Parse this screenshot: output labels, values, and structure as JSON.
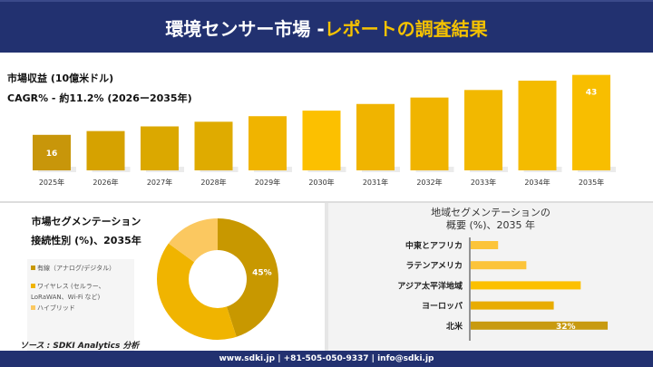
{
  "header": {
    "title_main": "環境センサー市場 -",
    "title_accent": "レポートの調査結果"
  },
  "revenue": {
    "label": "市場収益 (10億米ドル)",
    "cagr": "CAGR% - 約11.2% (2026ー2035年)"
  },
  "connectivity": {
    "title1": "市場セグメンテーション",
    "title2": "接続性別 (%)、2035年",
    "source": "ソース : SDKI Analytics 分析"
  },
  "region": {
    "title1": "地域セグメンテーションの",
    "title2": "概要 (%)、2035 年"
  },
  "footer": {
    "contact": "www.sdki.jp | +81-505-050-9337 | info@sdki.jp"
  },
  "chart_data": [
    {
      "type": "bar",
      "title": "市場収益 (10億米ドル)",
      "categories": [
        "2025年",
        "2026年",
        "2027年",
        "2028年",
        "2029年",
        "2030年",
        "2031年",
        "2032年",
        "2033年",
        "2034年",
        "2035年"
      ],
      "values": [
        16,
        17.7,
        19.8,
        21.9,
        24.4,
        26.9,
        29.9,
        32.8,
        36.2,
        40.4,
        43
      ],
      "data_labels": {
        "0": "16",
        "10": "43"
      },
      "colors": [
        "#c8960a",
        "#d6a200",
        "#dba800",
        "#dfab00",
        "#f0b400",
        "#fcc000",
        "#f0b400",
        "#f0b400",
        "#f2b800",
        "#f4bb00",
        "#f8be00"
      ]
    },
    {
      "type": "pie",
      "title": "接続性別 (%)、2035年",
      "labels": [
        "有線（アナログ/デジタル）",
        "ワイヤレス (セルラー、LoRaWAN、Wi-Fi など)",
        "ハイブリッド"
      ],
      "values": [
        45,
        40,
        15
      ],
      "colors": [
        "#c89800",
        "#f0b400",
        "#fbc860"
      ],
      "data_labels": [
        "45%",
        "",
        ""
      ]
    },
    {
      "type": "bar",
      "orientation": "horizontal",
      "title": "地域セグメンテーションの概要 (%)、2035 年",
      "categories": [
        "中東とアフリカ",
        "ラテンアメリカ",
        "アジア太平洋地域",
        "ヨーロッパ",
        "北米"
      ],
      "values": [
        6.4,
        13,
        25.7,
        19.4,
        32
      ],
      "data_labels": {
        "4": "32%"
      },
      "colors": [
        "#fcc43a",
        "#fcc43a",
        "#fcc000",
        "#e8ac00",
        "#c89a10"
      ],
      "xlim": [
        0,
        34
      ]
    }
  ]
}
